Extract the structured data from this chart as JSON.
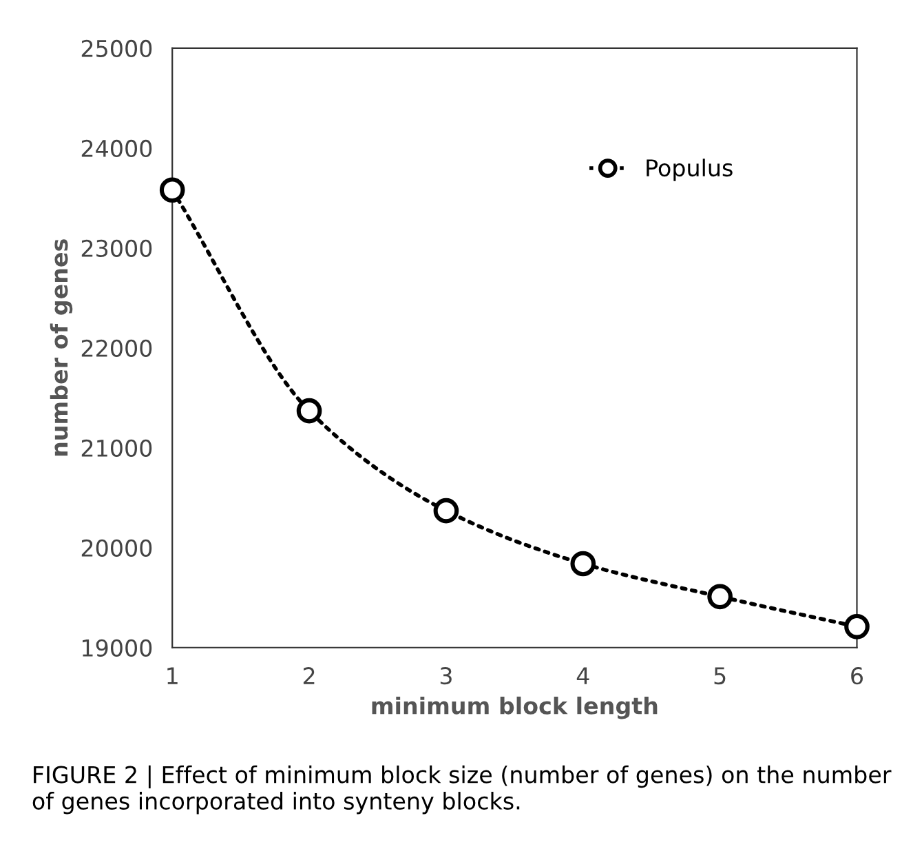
{
  "chart_data": {
    "type": "line",
    "xlabel": "minimum block length",
    "ylabel": "number of genes",
    "x": [
      1,
      2,
      3,
      4,
      5,
      6
    ],
    "series": [
      {
        "name": "Populus",
        "color": "#000000",
        "values": [
          23580,
          21370,
          20370,
          19840,
          19510,
          19210
        ]
      }
    ],
    "xlim": [
      1,
      6
    ],
    "xticks": [
      1,
      2,
      3,
      4,
      5,
      6
    ],
    "ylim": [
      19000,
      25000
    ],
    "yticks": [
      19000,
      20000,
      21000,
      22000,
      23000,
      24000,
      25000
    ],
    "marker": "circle",
    "line_style": "dotted",
    "grid": false,
    "legend": "top right",
    "annotations": [
      "FIGURE 2 | Effect of minimum block size (number of genes) on the number of genes incorporated into synteny blocks."
    ]
  }
}
